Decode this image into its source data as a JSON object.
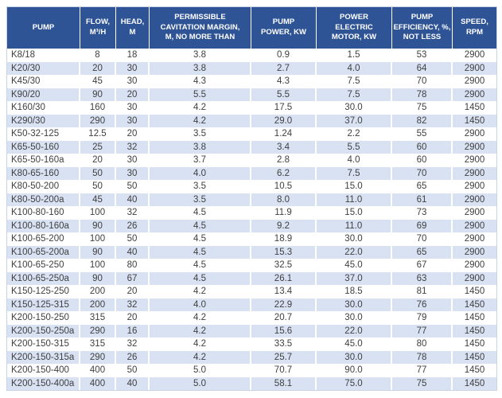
{
  "chart_data": {
    "type": "table",
    "title": "Pump specifications table",
    "columns": [
      {
        "id": "pump",
        "label": "PUMP",
        "align": "left"
      },
      {
        "id": "flow",
        "label": "FLOW,\nM³/H",
        "align": "center"
      },
      {
        "id": "head",
        "label": "HEAD,\nM",
        "align": "center"
      },
      {
        "id": "cavitation-margin",
        "label": "PERMISSIBLE\nCAVITATION MARGIN,\nM, NO MORE THAN",
        "align": "center"
      },
      {
        "id": "pump-power",
        "label": "PUMP\nPOWER, KW",
        "align": "center"
      },
      {
        "id": "motor-power",
        "label": "POWER\nELECTRIC\nMOTOR, KW",
        "align": "center"
      },
      {
        "id": "efficiency",
        "label": "PUMP\nEFFICIENCY, %,\nNOT LESS",
        "align": "center"
      },
      {
        "id": "speed",
        "label": "SPEED,\nRPM",
        "align": "center"
      }
    ],
    "rows": [
      [
        "K8/18",
        "8",
        "18",
        "3.8",
        "0.9",
        "1.5",
        "53",
        "2900"
      ],
      [
        "K20/30",
        "20",
        "30",
        "3.8",
        "2.7",
        "4.0",
        "64",
        "2900"
      ],
      [
        "K45/30",
        "45",
        "30",
        "4.3",
        "4.3",
        "7.5",
        "70",
        "2900"
      ],
      [
        "K90/20",
        "90",
        "20",
        "5.5",
        "5.5",
        "7.5",
        "78",
        "2900"
      ],
      [
        "K160/30",
        "160",
        "30",
        "4.2",
        "17.5",
        "30.0",
        "75",
        "1450"
      ],
      [
        "K290/30",
        "290",
        "30",
        "4.2",
        "29.0",
        "37.0",
        "82",
        "1450"
      ],
      [
        "K50-32-125",
        "12.5",
        "20",
        "3.5",
        "1.24",
        "2.2",
        "55",
        "2900"
      ],
      [
        "K65-50-160",
        "25",
        "32",
        "3.8",
        "3.4",
        "5.5",
        "60",
        "2900"
      ],
      [
        "K65-50-160a",
        "20",
        "30",
        "3.7",
        "2.8",
        "4.0",
        "60",
        "2900"
      ],
      [
        "K80-65-160",
        "50",
        "30",
        "4.0",
        "6.2",
        "7.5",
        "70",
        "2900"
      ],
      [
        "K80-50-200",
        "50",
        "50",
        "3.5",
        "10.5",
        "15.0",
        "65",
        "2900"
      ],
      [
        "K80-50-200a",
        "45",
        "40",
        "3.5",
        "8.0",
        "11.0",
        "61",
        "2900"
      ],
      [
        "K100-80-160",
        "100",
        "32",
        "4.5",
        "11.9",
        "15.0",
        "73",
        "2900"
      ],
      [
        "K100-80-160a",
        "90",
        "26",
        "4.5",
        "9.2",
        "11.0",
        "69",
        "2900"
      ],
      [
        "K100-65-200",
        "100",
        "50",
        "4.5",
        "18.9",
        "30.0",
        "70",
        "2900"
      ],
      [
        "K100-65-200a",
        "90",
        "40",
        "4.5",
        "15.3",
        "22.0",
        "65",
        "2900"
      ],
      [
        "K100-65-250",
        "100",
        "80",
        "4.5",
        "32.5",
        "45.0",
        "67",
        "2900"
      ],
      [
        "K100-65-250a",
        "90",
        "67",
        "4.5",
        "26.1",
        "37.0",
        "63",
        "2900"
      ],
      [
        "K150-125-250",
        "200",
        "20",
        "4.2",
        "13.4",
        "18.5",
        "81",
        "1450"
      ],
      [
        "K150-125-315",
        "200",
        "32",
        "4.0",
        "22.9",
        "30.0",
        "76",
        "1450"
      ],
      [
        "K200-150-250",
        "315",
        "20",
        "4.2",
        "20.7",
        "30.0",
        "79",
        "1450"
      ],
      [
        "K200-150-250a",
        "290",
        "16",
        "4.2",
        "15.6",
        "22.0",
        "77",
        "1450"
      ],
      [
        "K200-150-315",
        "315",
        "32",
        "4.2",
        "33.5",
        "45.0",
        "80",
        "1450"
      ],
      [
        "K200-150-315a",
        "290",
        "26",
        "4.2",
        "25.7",
        "30.0",
        "78",
        "1450"
      ],
      [
        "K200-150-400",
        "400",
        "50",
        "5.0",
        "70.7",
        "90.0",
        "77",
        "1450"
      ],
      [
        "K200-150-400a",
        "400",
        "40",
        "5.0",
        "58.1",
        "75.0",
        "75",
        "1450"
      ]
    ],
    "layout": {
      "banded_rows": true,
      "stripe_starts_on_row": 2,
      "grid": "white column separators, no horizontal lines"
    }
  },
  "colors": {
    "header_bg": "#2F5496",
    "header_text": "#FFFFFF",
    "row_stripe": "#D9E2F3",
    "row_plain": "#FFFFFF",
    "body_text": "#404040",
    "separator": "#FFFFFF",
    "outer_border": "#C9D3E8"
  }
}
